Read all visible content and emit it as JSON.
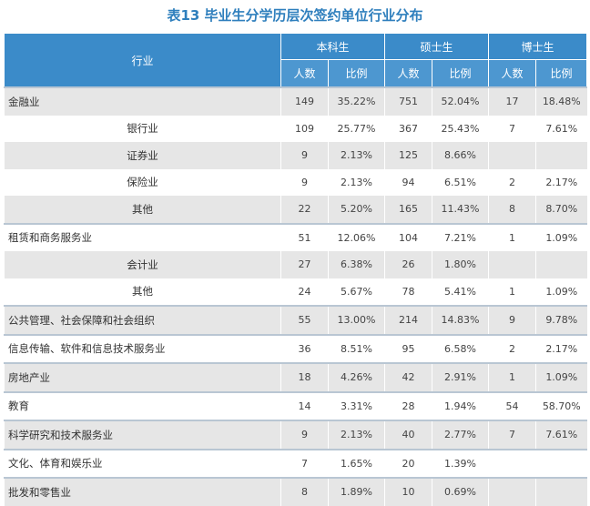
{
  "title": "表13 毕业生分学历层次签约单位行业分布",
  "header": {
    "industry": "行业",
    "groups": [
      "本科生",
      "硕士生",
      "博士生"
    ],
    "count_label": "人数",
    "ratio_label": "比例"
  },
  "rows": [
    {
      "name": "金融业",
      "sub": false,
      "ug_n": "149",
      "ug_p": "35.22%",
      "ms_n": "751",
      "ms_p": "52.04%",
      "phd_n": "17",
      "phd_p": "18.48%"
    },
    {
      "name": "银行业",
      "sub": true,
      "ug_n": "109",
      "ug_p": "25.77%",
      "ms_n": "367",
      "ms_p": "25.43%",
      "phd_n": "7",
      "phd_p": "7.61%"
    },
    {
      "name": "证券业",
      "sub": true,
      "ug_n": "9",
      "ug_p": "2.13%",
      "ms_n": "125",
      "ms_p": "8.66%",
      "phd_n": "",
      "phd_p": ""
    },
    {
      "name": "保险业",
      "sub": true,
      "ug_n": "9",
      "ug_p": "2.13%",
      "ms_n": "94",
      "ms_p": "6.51%",
      "phd_n": "2",
      "phd_p": "2.17%"
    },
    {
      "name": "其他",
      "sub": true,
      "ug_n": "22",
      "ug_p": "5.20%",
      "ms_n": "165",
      "ms_p": "11.43%",
      "phd_n": "8",
      "phd_p": "8.70%"
    },
    {
      "name": "租赁和商务服务业",
      "sub": false,
      "ug_n": "51",
      "ug_p": "12.06%",
      "ms_n": "104",
      "ms_p": "7.21%",
      "phd_n": "1",
      "phd_p": "1.09%"
    },
    {
      "name": "会计业",
      "sub": true,
      "ug_n": "27",
      "ug_p": "6.38%",
      "ms_n": "26",
      "ms_p": "1.80%",
      "phd_n": "",
      "phd_p": ""
    },
    {
      "name": "其他",
      "sub": true,
      "ug_n": "24",
      "ug_p": "5.67%",
      "ms_n": "78",
      "ms_p": "5.41%",
      "phd_n": "1",
      "phd_p": "1.09%"
    },
    {
      "name": "公共管理、社会保障和社会组织",
      "sub": false,
      "ug_n": "55",
      "ug_p": "13.00%",
      "ms_n": "214",
      "ms_p": "14.83%",
      "phd_n": "9",
      "phd_p": "9.78%"
    },
    {
      "name": "信息传输、软件和信息技术服务业",
      "sub": false,
      "ug_n": "36",
      "ug_p": "8.51%",
      "ms_n": "95",
      "ms_p": "6.58%",
      "phd_n": "2",
      "phd_p": "2.17%"
    },
    {
      "name": "房地产业",
      "sub": false,
      "ug_n": "18",
      "ug_p": "4.26%",
      "ms_n": "42",
      "ms_p": "2.91%",
      "phd_n": "1",
      "phd_p": "1.09%"
    },
    {
      "name": "教育",
      "sub": false,
      "ug_n": "14",
      "ug_p": "3.31%",
      "ms_n": "28",
      "ms_p": "1.94%",
      "phd_n": "54",
      "phd_p": "58.70%"
    },
    {
      "name": "科学研究和技术服务业",
      "sub": false,
      "ug_n": "9",
      "ug_p": "2.13%",
      "ms_n": "40",
      "ms_p": "2.77%",
      "phd_n": "7",
      "phd_p": "7.61%"
    },
    {
      "name": "文化、体育和娱乐业",
      "sub": false,
      "ug_n": "7",
      "ug_p": "1.65%",
      "ms_n": "20",
      "ms_p": "1.39%",
      "phd_n": "",
      "phd_p": ""
    },
    {
      "name": "批发和零售业",
      "sub": false,
      "ug_n": "8",
      "ug_p": "1.89%",
      "ms_n": "10",
      "ms_p": "0.69%",
      "phd_n": "",
      "phd_p": ""
    }
  ]
}
